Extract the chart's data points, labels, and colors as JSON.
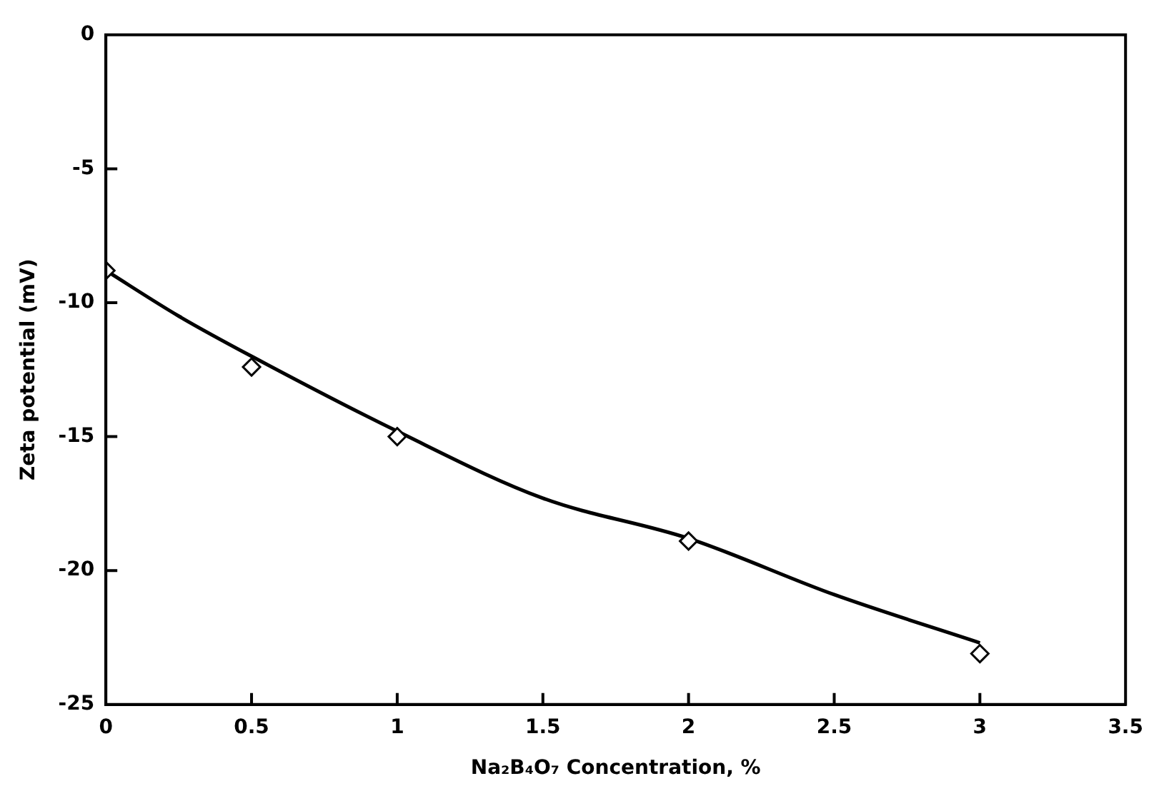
{
  "chart_data": {
    "type": "scatter",
    "xlabel": "Na₂B₄O₇ Concentration, %",
    "ylabel": "Zeta potential (mV)",
    "xlim": [
      0,
      3.5
    ],
    "xticks": [
      0,
      0.5,
      1,
      1.5,
      2,
      2.5,
      3,
      3.5
    ],
    "ylim": [
      -25,
      0
    ],
    "yticks": [
      -25,
      -20,
      -15,
      -10,
      -5,
      0
    ],
    "grid": false,
    "legend": false,
    "marker": "diamond",
    "series": [
      {
        "color": "#000000",
        "x": [
          0,
          0.5,
          1,
          2,
          3
        ],
        "values": [
          -8.8,
          -12.4,
          -15.0,
          -18.9,
          -23.1
        ]
      },
      {
        "type": "line",
        "color": "#000000",
        "marker": "none",
        "line_style": "solid",
        "x": [
          0,
          0.25,
          0.5,
          1,
          1.5,
          2,
          2.5,
          3
        ],
        "values": [
          -8.8,
          -10.5,
          -12.0,
          -14.8,
          -17.3,
          -18.8,
          -20.9,
          -22.7
        ]
      }
    ]
  }
}
